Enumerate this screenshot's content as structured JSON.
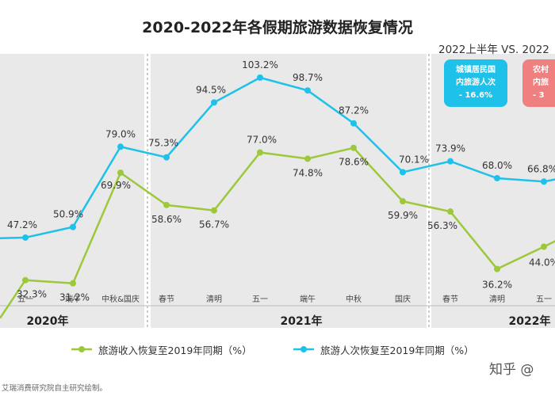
{
  "title": "2020-2022年各假期旅游数据恢复情况",
  "compare_label": "2022上半年 VS. 2022",
  "badges": [
    {
      "line1": "城镇居民国",
      "line2": "内旅游人次",
      "line3": "- 16.6%",
      "color": "#1ec1ea"
    },
    {
      "line1": "农村",
      "line2": "内旅",
      "line3": "- 3",
      "color": "#f07f7f"
    }
  ],
  "legend": {
    "revenue": "旅游收入恢复至2019年同期（%）",
    "visits": "旅游人次恢复至2019年同期（%）"
  },
  "source": "艾瑞消费研究院自主研究绘制。",
  "watermark": "知乎 @",
  "colors": {
    "revenue": "#9cc83a",
    "visits": "#1ec1ea",
    "panel": "#e9e9e9"
  },
  "chart_data": {
    "type": "line",
    "groups": [
      {
        "year": "2020年",
        "categories": [
          "",
          "五一",
          "端午",
          "中秋&国庆"
        ]
      },
      {
        "year": "2021年",
        "categories": [
          "春节",
          "清明",
          "五一",
          "端午",
          "中秋",
          "国庆"
        ]
      },
      {
        "year": "2022年",
        "categories": [
          "春节",
          "清明",
          "五一",
          ""
        ]
      }
    ],
    "categories": [
      "",
      "五一",
      "端午",
      "中秋&国庆",
      "春节",
      "清明",
      "五一",
      "端午",
      "中秋",
      "国庆",
      "春节",
      "清明",
      "五一",
      ""
    ],
    "series": [
      {
        "name": "旅游收入恢复至2019年同期（%）",
        "color": "#9cc83a",
        "values": [
          19.0,
          32.3,
          31.2,
          69.9,
          58.6,
          56.7,
          77.0,
          74.8,
          78.6,
          59.9,
          56.3,
          36.2,
          44.0,
          52.0
        ],
        "labels": [
          "",
          "32.3%",
          "31.2%",
          "69.9%",
          "58.6%",
          "56.7%",
          "77.0%",
          "74.8%",
          "78.6%",
          "59.9%",
          "56.3%",
          "36.2%",
          "44.0%",
          ""
        ]
      },
      {
        "name": "旅游人次恢复至2019年同期（%）",
        "color": "#1ec1ea",
        "values": [
          47.0,
          47.2,
          50.9,
          79.0,
          75.3,
          94.5,
          103.2,
          98.7,
          87.2,
          70.1,
          73.9,
          68.0,
          66.8,
          70.0
        ],
        "labels": [
          "",
          "47.2%",
          "50.9%",
          "79.0%",
          "75.3%",
          "94.5%",
          "103.2%",
          "98.7%",
          "87.2%",
          "70.1%",
          "73.9%",
          "68.0%",
          "66.8%",
          ""
        ]
      }
    ],
    "ylim": [
      0,
      120
    ],
    "grid": false,
    "legend_position": "bottom"
  }
}
